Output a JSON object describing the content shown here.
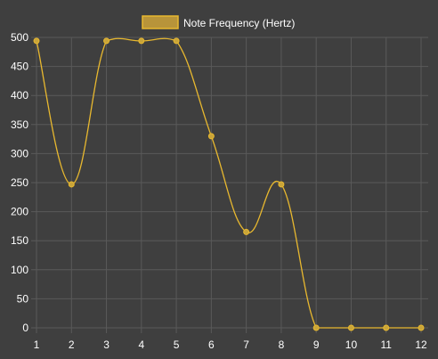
{
  "chart_data": {
    "type": "line",
    "x": [
      1,
      2,
      3,
      4,
      5,
      6,
      7,
      8,
      9,
      10,
      11,
      12
    ],
    "series": [
      {
        "name": "Note Frequency (Hertz)",
        "values": [
          494,
          247,
          494,
          494,
          494,
          330,
          165,
          247,
          0,
          0,
          0,
          0
        ]
      }
    ],
    "xlim": [
      1,
      12
    ],
    "ylim": [
      0,
      500
    ],
    "yticks": [
      0,
      50,
      100,
      150,
      200,
      250,
      300,
      350,
      400,
      450,
      500
    ],
    "grid": true,
    "legend_position": "top-center",
    "smooth": true
  },
  "colors": {
    "background": "#3f3f3f",
    "grid": "#5a5a5a",
    "line": "#e8b82f",
    "point_fill": "#c9a53a",
    "legend_fill": "#b8943a",
    "legend_stroke": "#e8b82f",
    "text": "#ffffff"
  }
}
